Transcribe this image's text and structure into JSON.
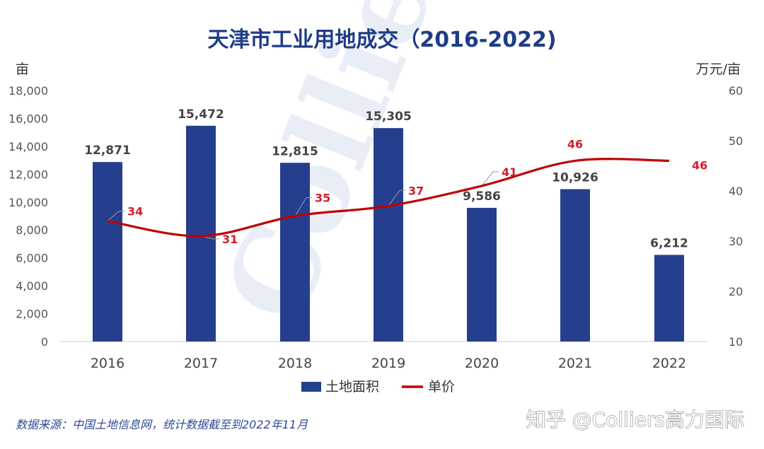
{
  "chart_data": {
    "type": "bar+line",
    "title": "天津市工业用地成交（2016-2022)",
    "left_axis_unit": "亩",
    "right_axis_unit": "万元/亩",
    "categories": [
      "2016",
      "2017",
      "2018",
      "2019",
      "2020",
      "2021",
      "2022"
    ],
    "left_axis": {
      "min": 0,
      "max": 18000,
      "ticks": [
        "0",
        "2,000",
        "4,000",
        "6,000",
        "8,000",
        "10,000",
        "12,000",
        "14,000",
        "16,000",
        "18,000"
      ]
    },
    "right_axis": {
      "min": 10,
      "max": 60,
      "ticks": [
        "10",
        "20",
        "30",
        "40",
        "50",
        "60"
      ]
    },
    "series": [
      {
        "name": "土地面积",
        "kind": "bar",
        "color": "#253f8e",
        "values": [
          12871,
          15472,
          12815,
          15305,
          9586,
          10926,
          6212
        ],
        "labels": [
          "12,871",
          "15,472",
          "12,815",
          "15,305",
          "9,586",
          "10,926",
          "6,212"
        ]
      },
      {
        "name": "单价",
        "kind": "line",
        "axis": "right",
        "color": "#c00000",
        "values": [
          34,
          31,
          35,
          37,
          41,
          46,
          46
        ],
        "labels": [
          "34",
          "31",
          "35",
          "37",
          "41",
          "46",
          "46"
        ]
      }
    ],
    "legend_placement": "bottom",
    "grid": false
  },
  "watermark": "Colliers",
  "footer": {
    "source": "数据来源：中国土地信息网，统计数据截至到2022年11月",
    "credit": "知乎 @Colliers高力国际"
  }
}
